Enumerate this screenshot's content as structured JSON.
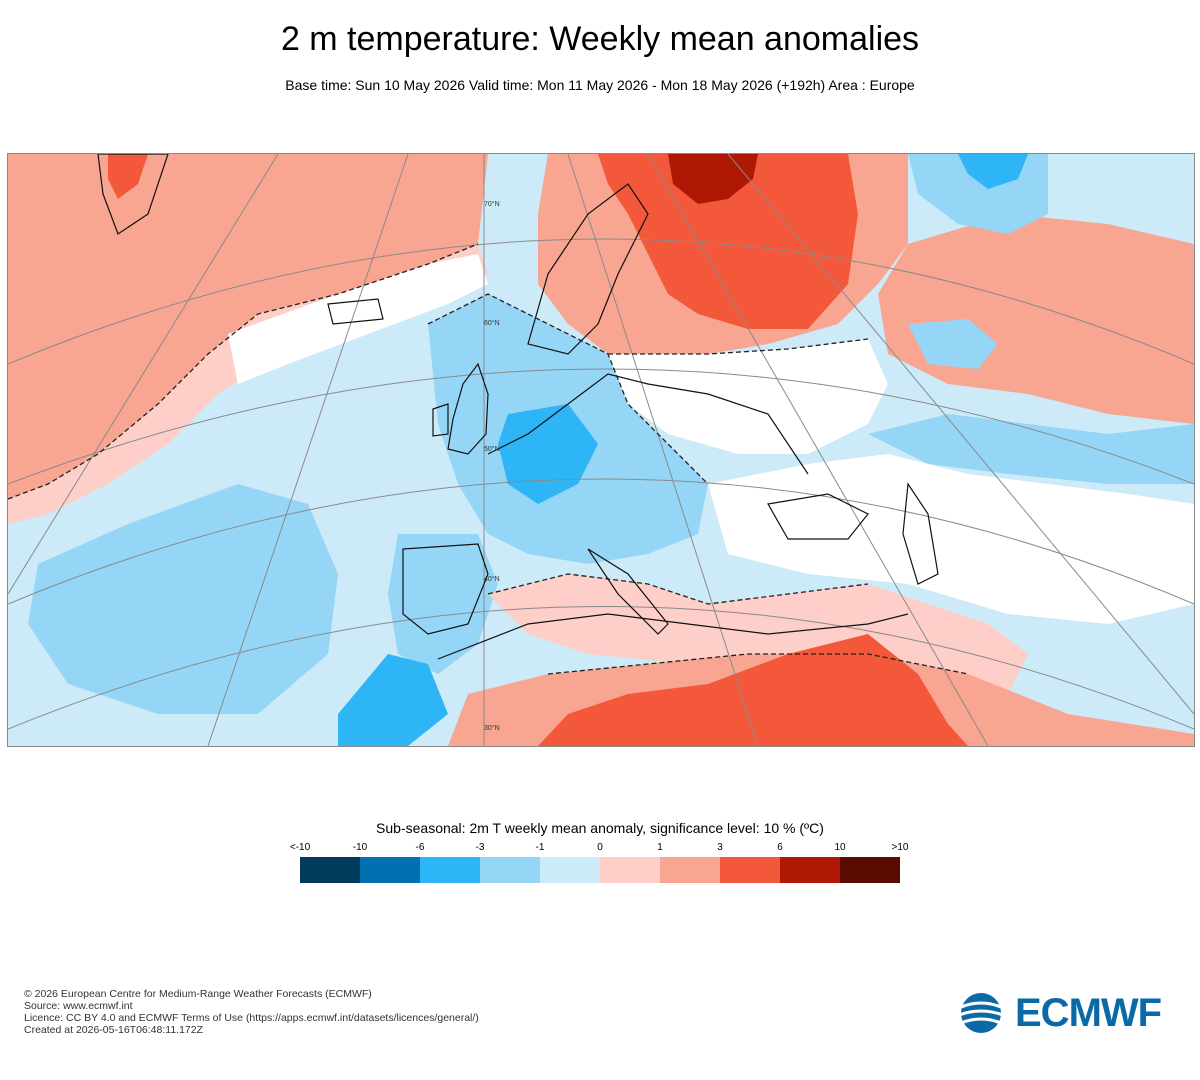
{
  "title": "2 m temperature: Weekly mean anomalies",
  "subtitle": "Base time: Sun 10 May 2026 Valid time: Mon 11 May 2026 - Mon 18 May 2026 (+192h) Area : Europe",
  "map": {
    "latitude_labels": [
      "70°N",
      "60°N",
      "50°N",
      "40°N",
      "30°N"
    ],
    "colors": {
      "deep_blue": "#003a5c",
      "dark_blue": "#0070b0",
      "blue": "#2db5f5",
      "light_blue": "#95d6f7",
      "pale_blue": "#cdeaf9",
      "white": "#ffffff",
      "pale_red": "#fdcfc8",
      "light_red": "#f8a592",
      "red": "#f3583a",
      "dark_red": "#ae1804",
      "deep_red": "#5a0c03"
    }
  },
  "legend": {
    "title": "Sub-seasonal: 2m T weekly mean anomaly, significance level: 10 % (ºC)",
    "tick_labels": [
      "<-10",
      "-10",
      "-6",
      "-3",
      "-1",
      "0",
      "1",
      "3",
      "6",
      "10",
      ">10"
    ],
    "bins": [
      {
        "range": "<-10",
        "color": "#003a5c"
      },
      {
        "range": "-10 to -6",
        "color": "#0070b0"
      },
      {
        "range": "-6 to -3",
        "color": "#2db5f5"
      },
      {
        "range": "-3 to -1",
        "color": "#95d6f7"
      },
      {
        "range": "-1 to 0",
        "color": "#cdeaf9"
      },
      {
        "range": "0 to 1",
        "color": "#fdcfc8"
      },
      {
        "range": "1 to 3",
        "color": "#f8a592"
      },
      {
        "range": "3 to 6",
        "color": "#f3583a"
      },
      {
        "range": "6 to 10",
        "color": "#ae1804"
      },
      {
        "range": ">10",
        "color": "#5a0c03"
      }
    ]
  },
  "footer": {
    "line1": "© 2026 European Centre for Medium-Range Weather Forecasts (ECMWF)",
    "line2": "Source: www.ecmwf.int",
    "line3": "Licence: CC BY 4.0 and ECMWF Terms of Use (https://apps.ecmwf.int/datasets/licences/general/)",
    "line4": "Created at 2026-05-16T06:48:11.172Z"
  },
  "logo": {
    "text": "ECMWF",
    "color": "#0a6aa8"
  }
}
